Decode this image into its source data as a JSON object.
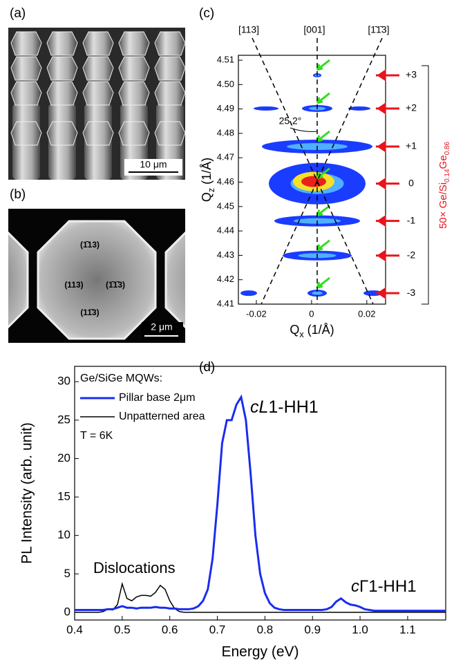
{
  "images": [
    {
      "panel_label": "(a)",
      "scale_bar": "10 μm"
    },
    {
      "panel_label": "(b)",
      "scale_bar": "2 μm",
      "facets": [
        "(1̄13)",
        "(113)",
        "(1̄1̄3)",
        "(11̄3)"
      ]
    }
  ],
  "chart_data": [
    {
      "type": "satellite-map",
      "panel_label": "(c)",
      "xlabel": [
        "Q",
        "x",
        " (1/Å)"
      ],
      "ylabel": [
        "Q",
        "z",
        " (1/Å)"
      ],
      "xlim": [
        -0.0265,
        0.0268
      ],
      "ylim": [
        4.41,
        4.512
      ],
      "xticks": [
        -0.02,
        0,
        0.02
      ],
      "yticks": [
        4.41,
        4.42,
        4.43,
        4.44,
        4.45,
        4.46,
        4.47,
        4.48,
        4.49,
        {
          "value": 4.5,
          "label": "4.50"
        },
        4.51
      ],
      "directions": [
        "[113]",
        "[001]",
        "[1̄1̄3]"
      ],
      "angle": "25.2°",
      "side_label": [
        "50× Ge/Si",
        "0.14",
        "Ge",
        "0.86"
      ],
      "categories": [
        "+3",
        "+2",
        "+1",
        "0",
        "-1",
        "-2",
        "-3"
      ],
      "values": [
        4.5038,
        4.4902,
        4.4746,
        4.4594,
        4.4441,
        4.4299,
        4.4145
      ],
      "arrow_color": "#e8141c",
      "marker_color": "#33dd22"
    },
    {
      "type": "line",
      "panel_label": "(d)",
      "xlabel": "Energy (eV)",
      "ylabel": "PL Intensity (arb. unit)",
      "legend_title": "Ge/SiGe MQWs:",
      "note": "T = 6K",
      "annotations": [
        {
          "italic": "cL",
          "text": "1-HH1"
        },
        {
          "italic": "",
          "text": "Dislocations"
        },
        {
          "italic": "c",
          "text": "Γ1-HH1"
        }
      ],
      "xlim": [
        0.4,
        1.18
      ],
      "ylim": [
        -1,
        32
      ],
      "xticks": [
        0.4,
        0.5,
        0.6,
        0.7,
        0.8,
        0.9,
        {
          "value": 1,
          "label": "1.0"
        },
        1.1
      ],
      "yticks": [
        0,
        5,
        10,
        15,
        20,
        25,
        30
      ],
      "x": [
        0.4,
        0.41,
        0.42,
        0.43,
        0.44,
        0.45,
        0.46,
        0.47,
        0.48,
        0.49,
        0.5,
        0.51,
        0.52,
        0.53,
        0.54,
        0.55,
        0.56,
        0.57,
        0.58,
        0.59,
        0.6,
        0.61,
        0.62,
        0.63,
        0.64,
        0.65,
        0.66,
        0.67,
        0.68,
        0.69,
        0.7,
        0.71,
        0.72,
        0.73,
        0.74,
        0.75,
        0.76,
        0.77,
        0.78,
        0.79,
        0.8,
        0.81,
        0.82,
        0.83,
        0.84,
        0.85,
        0.86,
        0.87,
        0.88,
        0.89,
        0.9,
        0.91,
        0.92,
        0.93,
        0.94,
        0.95,
        0.96,
        0.97,
        0.98,
        0.99,
        1.0,
        1.01,
        1.02,
        1.03,
        1.04,
        1.05,
        1.06,
        1.07,
        1.08,
        1.09,
        1.1,
        1.11,
        1.12,
        1.13,
        1.14,
        1.15,
        1.16,
        1.17,
        1.18
      ],
      "series": [
        {
          "name": "Pillar base 2μm",
          "color": "#1a2cf0",
          "width": 3,
          "values": [
            0.3,
            0.3,
            0.3,
            0.3,
            0.3,
            0.3,
            0.3,
            0.4,
            0.4,
            0.6,
            0.8,
            0.6,
            0.6,
            0.5,
            0.6,
            0.6,
            0.6,
            0.7,
            0.6,
            0.6,
            0.5,
            0.5,
            0.4,
            0.4,
            0.4,
            0.5,
            0.8,
            1.5,
            3,
            7,
            14,
            22,
            25,
            25,
            27,
            28,
            25,
            18,
            10,
            5,
            2.5,
            1.2,
            0.6,
            0.4,
            0.3,
            0.3,
            0.3,
            0.3,
            0.3,
            0.3,
            0.3,
            0.3,
            0.3,
            0.4,
            0.7,
            1.4,
            1.8,
            1.3,
            1.0,
            0.9,
            0.7,
            0.4,
            0.3,
            0.2,
            0.2,
            0.2,
            0.2,
            0.2,
            0.2,
            0.2,
            0.2,
            0.2,
            0.2,
            0.2,
            0.2,
            0.2,
            0.2,
            0.2,
            0.2
          ]
        },
        {
          "name": "Unpatterned area",
          "color": "#000000",
          "width": 1.5,
          "values": [
            0,
            0,
            0,
            0,
            0,
            0,
            0.1,
            0.4,
            0.3,
            1.0,
            3.7,
            1.8,
            1.5,
            2.0,
            2.2,
            2.2,
            2.1,
            2.6,
            3.5,
            3.0,
            1.5,
            0.5,
            0.1,
            0,
            0,
            0,
            0,
            0,
            0,
            0,
            0,
            0,
            0,
            0,
            0,
            0,
            0,
            0,
            0,
            0,
            0,
            0,
            0,
            0,
            0,
            0,
            0,
            0,
            0,
            0,
            0,
            0,
            0,
            0,
            0,
            0,
            0,
            0,
            0,
            0,
            0,
            0,
            0,
            0,
            0,
            0,
            0,
            0,
            0,
            0,
            0,
            0,
            0,
            0,
            0,
            0,
            0,
            0,
            0
          ]
        }
      ]
    }
  ]
}
